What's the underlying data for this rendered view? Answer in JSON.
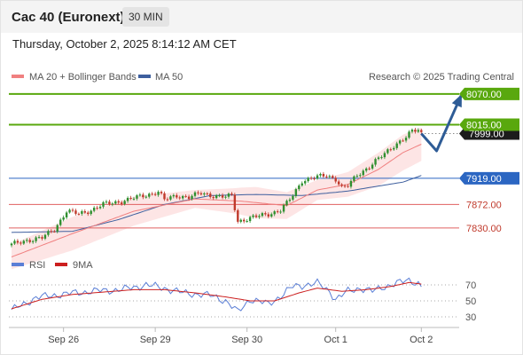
{
  "header": {
    "title": "Cac 40 (Euronext)",
    "timeframe": "30 MIN"
  },
  "date_text": "Thursday, October 2, 2025 8:14:12 AM CET",
  "legend": {
    "ma20": "MA 20 + Bollinger Bands",
    "ma50": "MA 50",
    "credit": "Research © 2025 Trading Central"
  },
  "rsi_legend": {
    "rsi": "RSI",
    "ma9": "9MA"
  },
  "colors": {
    "price_up": "#2f8f2f",
    "price_down": "#c0392b",
    "bands": "#fde0e0",
    "ma20": "#f08080",
    "ma50": "#3e5f9e",
    "green_level": "#59a80e",
    "blue_level": "#2b66c2",
    "red_level": "#e06060",
    "arrow": "#2e5c96",
    "rsi": "#5b7fd6",
    "ma9": "#cc1f1f"
  },
  "chart_data": [
    {
      "type": "candlestick",
      "title": "",
      "x_tick_labels": [
        "Sep 26",
        "Sep 29",
        "Sep 30",
        "Oct 1",
        "Oct 2"
      ],
      "ylim": [
        7790,
        8092
      ],
      "current_price": 7999.0,
      "levels": [
        {
          "label": "8070.00",
          "value": 8070.0,
          "style": "green-box"
        },
        {
          "label": "8015.00",
          "value": 8015.0,
          "style": "green-box"
        },
        {
          "label": "7919.00",
          "value": 7919.0,
          "style": "blue-box"
        },
        {
          "label": "7872.00",
          "value": 7872.0,
          "style": "red-text"
        },
        {
          "label": "7830.00",
          "value": 7830.0,
          "style": "red-text"
        }
      ],
      "anchors": [
        [
          0,
          7800
        ],
        [
          5,
          7808
        ],
        [
          10,
          7812
        ],
        [
          14,
          7828
        ],
        [
          18,
          7860
        ],
        [
          22,
          7855
        ],
        [
          26,
          7862
        ],
        [
          30,
          7872
        ],
        [
          36,
          7878
        ],
        [
          42,
          7886
        ],
        [
          48,
          7895
        ],
        [
          50,
          7880
        ],
        [
          54,
          7888
        ],
        [
          58,
          7885
        ],
        [
          62,
          7892
        ],
        [
          66,
          7888
        ],
        [
          70,
          7885
        ],
        [
          72,
          7888
        ],
        [
          74,
          7842
        ],
        [
          76,
          7845
        ],
        [
          80,
          7850
        ],
        [
          84,
          7855
        ],
        [
          88,
          7862
        ],
        [
          90,
          7874
        ],
        [
          92,
          7888
        ],
        [
          95,
          7915
        ],
        [
          99,
          7920
        ],
        [
          103,
          7924
        ],
        [
          106,
          7918
        ],
        [
          108,
          7902
        ],
        [
          110,
          7905
        ],
        [
          113,
          7925
        ],
        [
          117,
          7940
        ],
        [
          121,
          7958
        ],
        [
          125,
          7978
        ],
        [
          129,
          7992
        ],
        [
          131,
          8003
        ],
        [
          133,
          8006
        ],
        [
          134,
          8000
        ]
      ],
      "projection": [
        [
          134,
          7999
        ],
        [
          139,
          7968
        ],
        [
          147,
          8067
        ]
      ],
      "ma20_anchors": [
        [
          0,
          7778
        ],
        [
          20,
          7820
        ],
        [
          40,
          7860
        ],
        [
          60,
          7882
        ],
        [
          75,
          7878
        ],
        [
          90,
          7870
        ],
        [
          100,
          7898
        ],
        [
          110,
          7908
        ],
        [
          120,
          7935
        ],
        [
          128,
          7965
        ],
        [
          134,
          7980
        ]
      ],
      "ma50_anchors": [
        [
          0,
          7822
        ],
        [
          20,
          7824
        ],
        [
          35,
          7845
        ],
        [
          50,
          7872
        ],
        [
          65,
          7888
        ],
        [
          80,
          7890
        ],
        [
          95,
          7888
        ],
        [
          110,
          7896
        ],
        [
          120,
          7905
        ],
        [
          128,
          7912
        ],
        [
          134,
          7924
        ]
      ],
      "band_width_anchors": [
        [
          0,
          22
        ],
        [
          20,
          30
        ],
        [
          40,
          26
        ],
        [
          60,
          16
        ],
        [
          72,
          22
        ],
        [
          80,
          28
        ],
        [
          90,
          24
        ],
        [
          100,
          18
        ],
        [
          110,
          22
        ],
        [
          120,
          30
        ],
        [
          128,
          32
        ],
        [
          134,
          30
        ]
      ]
    },
    {
      "type": "line",
      "title": "",
      "series": [
        {
          "name": "RSI"
        },
        {
          "name": "9MA"
        }
      ],
      "ylim": [
        20,
        80
      ],
      "y_tick_labels": [
        "70",
        "50",
        "30"
      ],
      "reference_lines": [
        70,
        50,
        30
      ],
      "rsi_anchors": [
        [
          0,
          38
        ],
        [
          8,
          54
        ],
        [
          16,
          58
        ],
        [
          26,
          62
        ],
        [
          36,
          64
        ],
        [
          44,
          70
        ],
        [
          50,
          66
        ],
        [
          56,
          60
        ],
        [
          62,
          58
        ],
        [
          66,
          56
        ],
        [
          70,
          50
        ],
        [
          74,
          36
        ],
        [
          78,
          52
        ],
        [
          84,
          46
        ],
        [
          88,
          56
        ],
        [
          92,
          68
        ],
        [
          96,
          70
        ],
        [
          100,
          72
        ],
        [
          104,
          62
        ],
        [
          106,
          52
        ],
        [
          110,
          62
        ],
        [
          114,
          66
        ],
        [
          118,
          62
        ],
        [
          122,
          68
        ],
        [
          126,
          72
        ],
        [
          130,
          76
        ],
        [
          133,
          72
        ],
        [
          134,
          68
        ]
      ],
      "ma9_anchors": [
        [
          0,
          40
        ],
        [
          10,
          52
        ],
        [
          20,
          58
        ],
        [
          30,
          61
        ],
        [
          40,
          64
        ],
        [
          50,
          64
        ],
        [
          60,
          60
        ],
        [
          70,
          55
        ],
        [
          78,
          50
        ],
        [
          86,
          50
        ],
        [
          94,
          60
        ],
        [
          100,
          66
        ],
        [
          108,
          62
        ],
        [
          116,
          64
        ],
        [
          124,
          68
        ],
        [
          130,
          73
        ],
        [
          134,
          71
        ]
      ]
    }
  ]
}
